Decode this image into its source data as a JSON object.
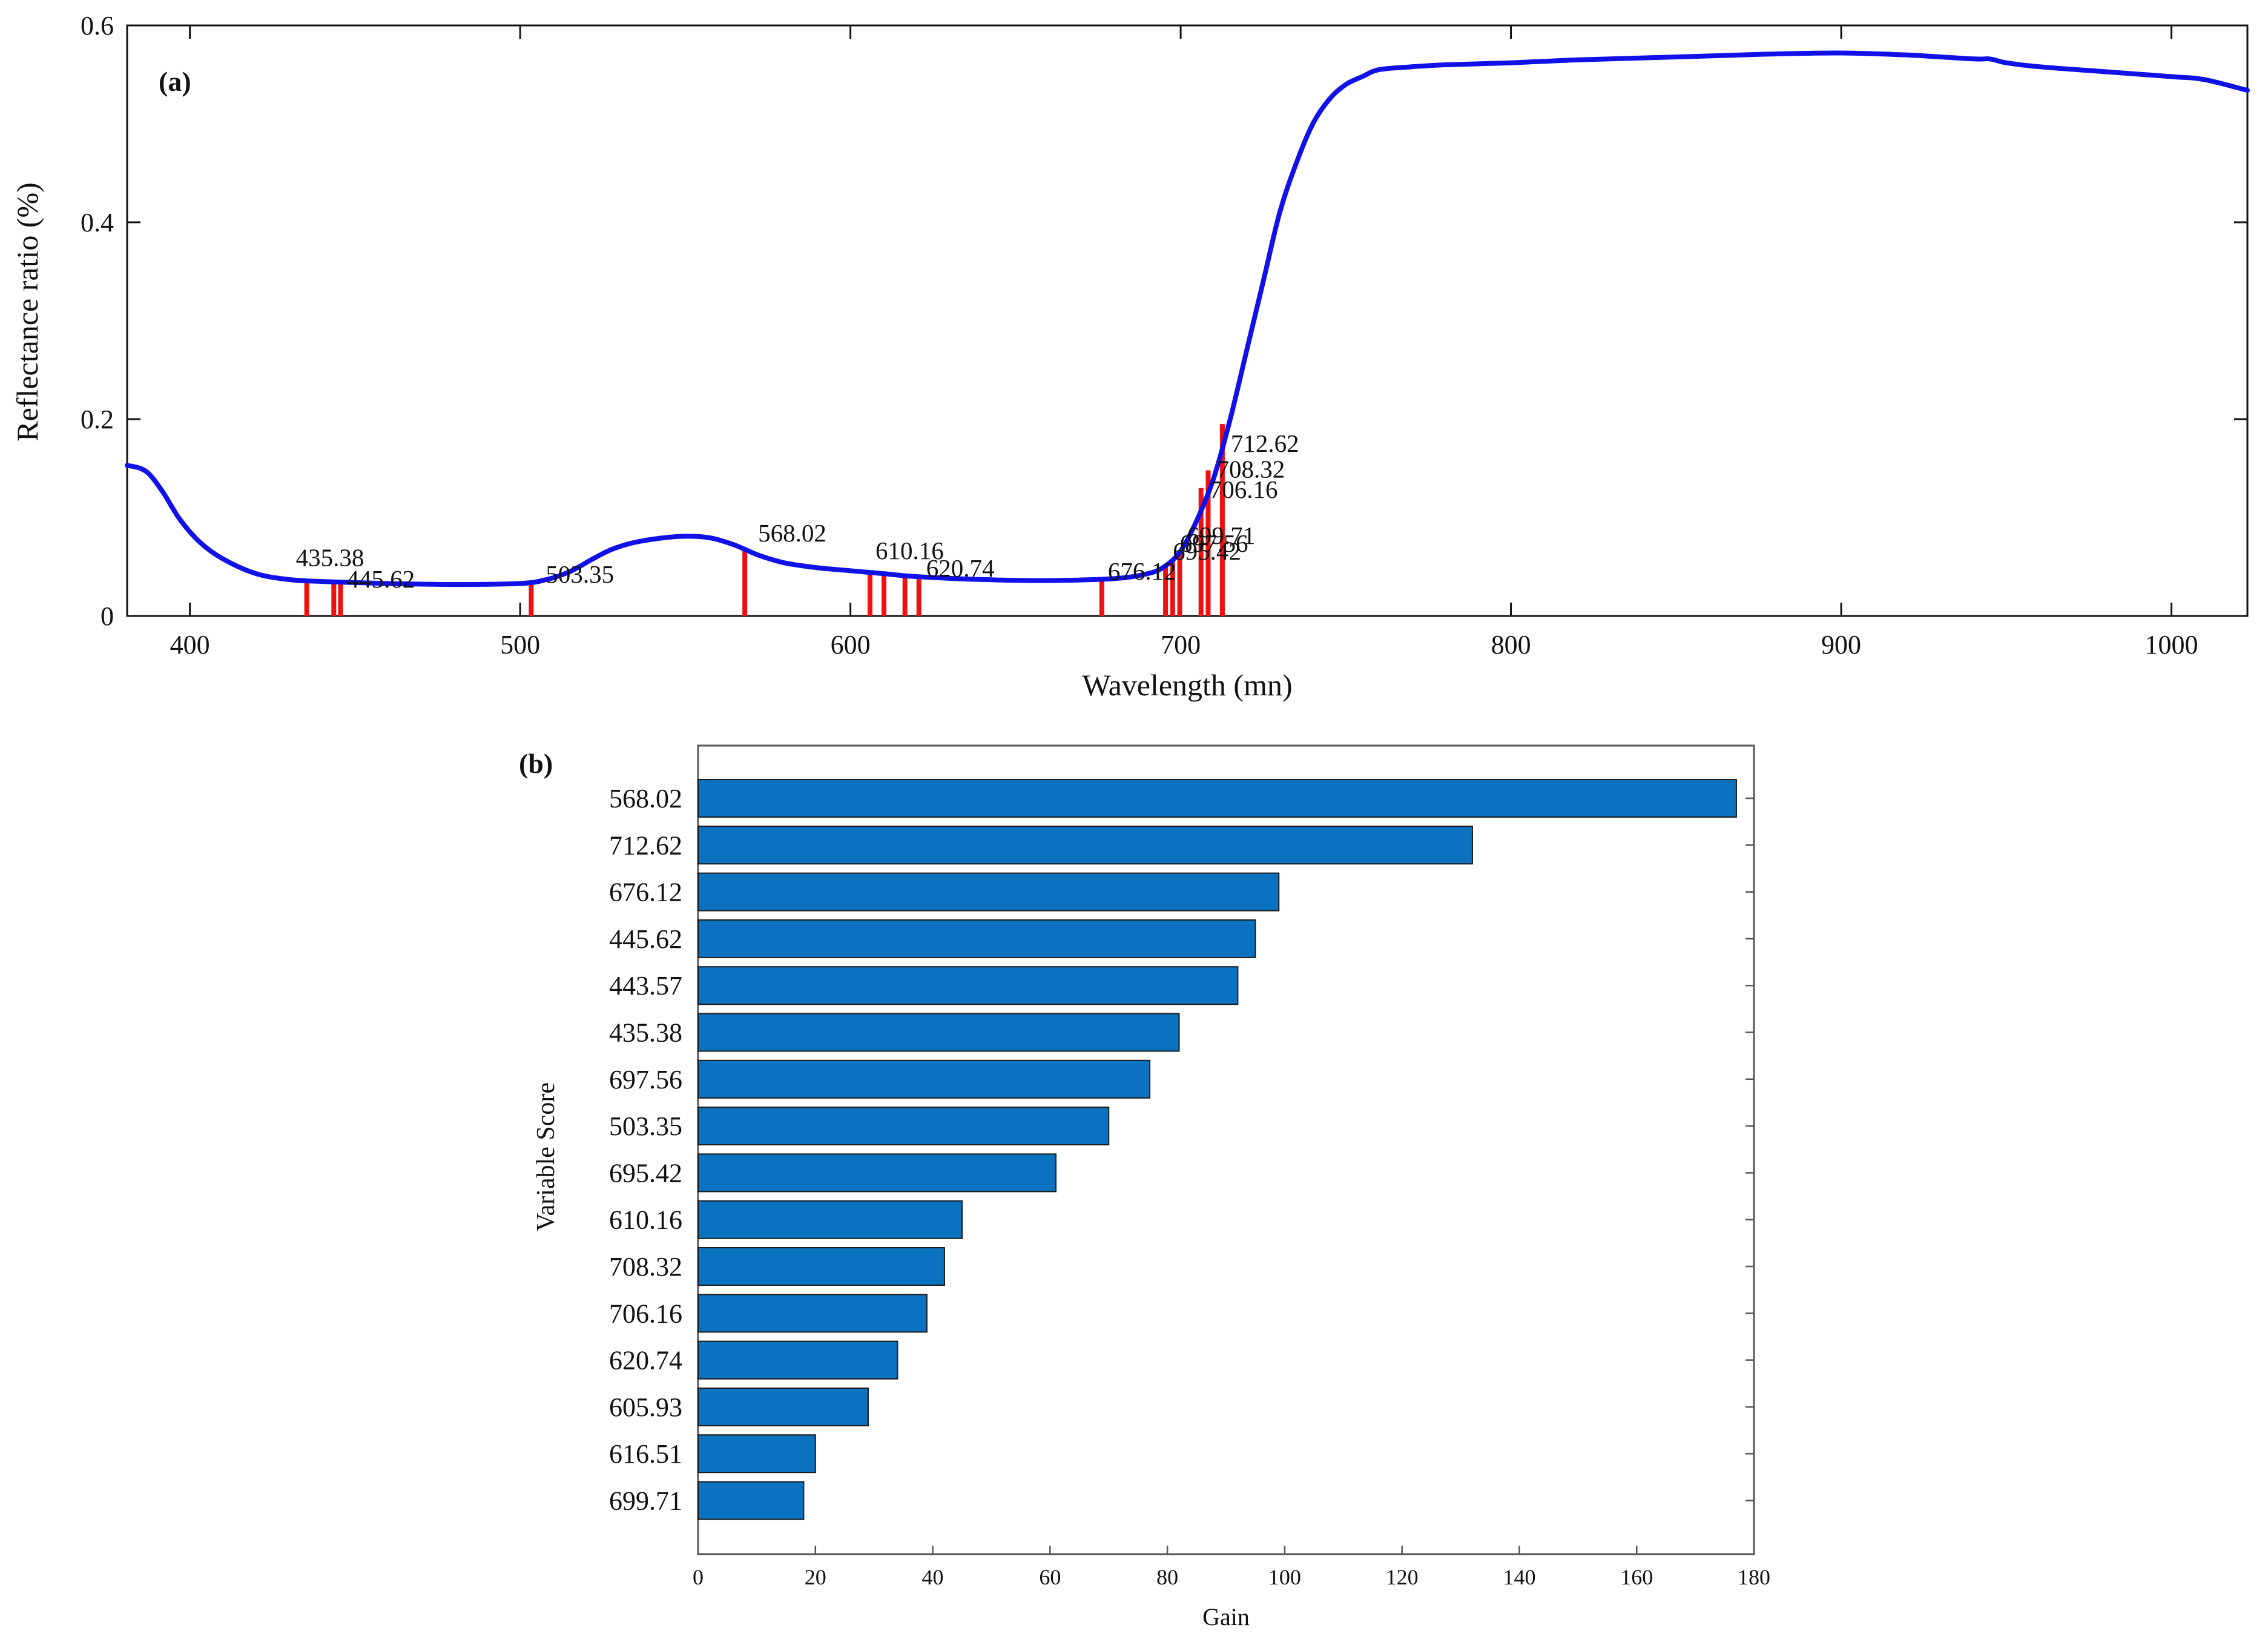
{
  "chart_data": [
    {
      "panel": "(a)",
      "type": "line",
      "xlabel": "Wavelength (mn)",
      "ylabel": "Reflectance ratio (%)",
      "xlim": [
        381,
        1023
      ],
      "ylim": [
        0,
        0.6
      ],
      "xticks": [
        400,
        500,
        600,
        700,
        800,
        900,
        1000
      ],
      "yticks": [
        0,
        0.2,
        0.4,
        0.6
      ],
      "ytick_labels": [
        "0",
        "0.2",
        "0.4",
        "0.6"
      ],
      "grid": false,
      "series": [
        {
          "name": "Reflectance",
          "color": "#1010e8",
          "x": [
            381,
            385,
            388,
            392,
            397,
            403,
            410,
            420,
            430,
            440,
            460,
            480,
            500,
            508,
            515,
            522,
            528,
            535,
            545,
            552,
            558,
            565,
            572,
            580,
            590,
            600,
            610,
            620,
            640,
            660,
            680,
            690,
            695,
            700,
            705,
            710,
            715,
            720,
            725,
            730,
            735,
            740,
            745,
            750,
            755,
            760,
            770,
            780,
            800,
            820,
            840,
            860,
            880,
            900,
            920,
            940,
            945,
            950,
            960,
            980,
            1000,
            1010,
            1023
          ],
          "y": [
            0.153,
            0.15,
            0.143,
            0.125,
            0.098,
            0.075,
            0.058,
            0.043,
            0.037,
            0.035,
            0.033,
            0.032,
            0.033,
            0.037,
            0.045,
            0.058,
            0.068,
            0.075,
            0.08,
            0.081,
            0.079,
            0.072,
            0.062,
            0.054,
            0.049,
            0.046,
            0.043,
            0.04,
            0.037,
            0.036,
            0.038,
            0.043,
            0.05,
            0.066,
            0.098,
            0.14,
            0.2,
            0.27,
            0.34,
            0.41,
            0.46,
            0.5,
            0.525,
            0.54,
            0.548,
            0.555,
            0.558,
            0.56,
            0.562,
            0.565,
            0.567,
            0.569,
            0.571,
            0.572,
            0.57,
            0.566,
            0.566,
            0.562,
            0.558,
            0.553,
            0.548,
            0.545,
            0.534
          ]
        }
      ],
      "selected_wavelengths": [
        {
          "x": 435.38,
          "y0": 0,
          "y1": 0.036,
          "label": "435.38",
          "show_label": true
        },
        {
          "x": 443.57,
          "y0": 0,
          "y1": 0.035,
          "label": "443.57",
          "show_label": false
        },
        {
          "x": 445.62,
          "y0": 0,
          "y1": 0.034,
          "label": "445.62",
          "show_label": true
        },
        {
          "x": 503.35,
          "y0": 0,
          "y1": 0.034,
          "label": "503.35",
          "show_label": true
        },
        {
          "x": 568.02,
          "y0": 0,
          "y1": 0.066,
          "label": "568.02",
          "show_label": true
        },
        {
          "x": 605.93,
          "y0": 0,
          "y1": 0.044,
          "label": "605.93",
          "show_label": false
        },
        {
          "x": 610.16,
          "y0": 0,
          "y1": 0.043,
          "label": "610.16",
          "show_label": true
        },
        {
          "x": 616.51,
          "y0": 0,
          "y1": 0.041,
          "label": "616.51",
          "show_label": false
        },
        {
          "x": 620.74,
          "y0": 0,
          "y1": 0.04,
          "label": "620.74",
          "show_label": true
        },
        {
          "x": 676.12,
          "y0": 0,
          "y1": 0.037,
          "label": "676.12",
          "show_label": true
        },
        {
          "x": 695.42,
          "y0": 0,
          "y1": 0.05,
          "label": "695.42",
          "show_label": true
        },
        {
          "x": 697.56,
          "y0": 0,
          "y1": 0.058,
          "label": "697.56",
          "show_label": true
        },
        {
          "x": 699.71,
          "y0": 0,
          "y1": 0.066,
          "label": "699.71",
          "show_label": true
        },
        {
          "x": 706.16,
          "y0": 0,
          "y1": 0.13,
          "label": "706.16",
          "show_label": true
        },
        {
          "x": 708.32,
          "y0": 0,
          "y1": 0.148,
          "label": "708.32",
          "show_label": true
        },
        {
          "x": 712.62,
          "y0": 0,
          "y1": 0.195,
          "label": "712.62",
          "show_label": true
        }
      ],
      "selection_color": "#ee1111"
    },
    {
      "panel": "(b)",
      "type": "bar",
      "orientation": "horizontal",
      "xlabel": "Gain",
      "ylabel": "Variable Score",
      "xlim": [
        0,
        180
      ],
      "xticks": [
        0,
        20,
        40,
        60,
        80,
        100,
        120,
        140,
        160,
        180
      ],
      "categories": [
        "568.02",
        "712.62",
        "676.12",
        "445.62",
        "443.57",
        "435.38",
        "697.56",
        "503.35",
        "695.42",
        "610.16",
        "708.32",
        "706.16",
        "620.74",
        "605.93",
        "616.51",
        "699.71"
      ],
      "values": [
        177,
        132,
        99,
        95,
        92,
        82,
        77,
        70,
        61,
        45,
        42,
        39,
        34,
        29,
        20,
        18
      ],
      "bar_color": "#0b72c0",
      "grid": false
    }
  ]
}
